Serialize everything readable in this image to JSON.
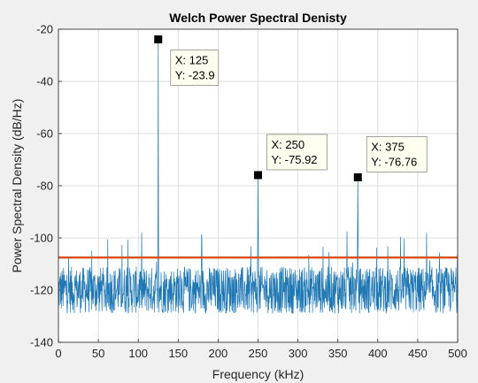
{
  "chart_data": {
    "type": "line",
    "title": "Welch Power Spectral Denisty",
    "xlabel": "Frequency (kHz)",
    "ylabel": "Power Spectral Density (dB/Hz)",
    "xlim": [
      0,
      500
    ],
    "ylim": [
      -140,
      -20
    ],
    "xticks": [
      0,
      50,
      100,
      150,
      200,
      250,
      300,
      350,
      400,
      450,
      500
    ],
    "yticks": [
      -140,
      -120,
      -100,
      -80,
      -60,
      -40,
      -20
    ],
    "grid": true,
    "noise_floor_db": -120,
    "noise_band_db": [
      -130,
      -110
    ],
    "noise_spike_peak_db": -97,
    "series": [
      {
        "kind": "psd",
        "color": "#1f77b4",
        "peaks": [
          {
            "x": 125,
            "y": -23.9
          },
          {
            "x": 250,
            "y": -75.92
          },
          {
            "x": 375,
            "y": -76.76
          }
        ]
      },
      {
        "kind": "horizontal-line",
        "color": "#d95319",
        "y": -107.5
      }
    ],
    "datatips": [
      {
        "x_label": "X: 125",
        "y_label": "Y: -23.9",
        "x": 125,
        "y": -23.9
      },
      {
        "x_label": "X: 250",
        "y_label": "Y: -75.92",
        "x": 250,
        "y": -75.92
      },
      {
        "x_label": "X: 375",
        "y_label": "Y: -76.76",
        "x": 375,
        "y": -76.76
      }
    ]
  }
}
